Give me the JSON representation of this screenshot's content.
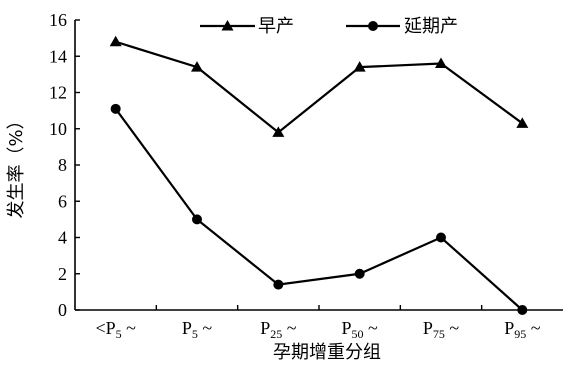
{
  "chart_data": {
    "type": "line",
    "title": "",
    "xlabel": "孕期增重分组",
    "ylabel": "发生率（%）",
    "ylim": [
      0,
      16
    ],
    "yticks": [
      0,
      2,
      4,
      6,
      8,
      10,
      12,
      14,
      16
    ],
    "categories": [
      {
        "prefix": "<",
        "base": "P",
        "sub": "5",
        "suffix": " ~"
      },
      {
        "prefix": "",
        "base": "P",
        "sub": "5",
        "suffix": " ~"
      },
      {
        "prefix": "",
        "base": "P",
        "sub": "25",
        "suffix": " ~"
      },
      {
        "prefix": "",
        "base": "P",
        "sub": "50",
        "suffix": " ~"
      },
      {
        "prefix": "",
        "base": "P",
        "sub": "75",
        "suffix": " ~"
      },
      {
        "prefix": "",
        "base": "P",
        "sub": "95",
        "suffix": " ~"
      }
    ],
    "series": [
      {
        "name": "早产",
        "marker": "triangle",
        "values": [
          14.8,
          13.4,
          9.8,
          13.4,
          13.6,
          10.3
        ]
      },
      {
        "name": "延期产",
        "marker": "circle",
        "values": [
          11.1,
          5.0,
          1.4,
          2.0,
          4.0,
          0.0
        ]
      }
    ],
    "legend_position": "top",
    "grid": false,
    "colors": {
      "line": "#000000",
      "background": "#ffffff"
    }
  }
}
